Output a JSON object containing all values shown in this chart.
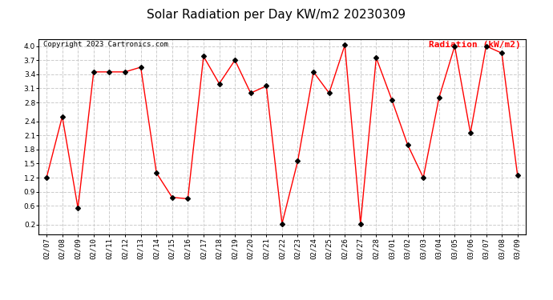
{
  "title": "Solar Radiation per Day KW/m2 20230309",
  "copyright_text": "Copyright 2023 Cartronics.com",
  "legend_label": "Radiation (kW/m2)",
  "dates": [
    "02/07",
    "02/08",
    "02/09",
    "02/10",
    "02/11",
    "02/12",
    "02/13",
    "02/14",
    "02/15",
    "02/16",
    "02/17",
    "02/18",
    "02/19",
    "02/20",
    "02/21",
    "02/22",
    "02/23",
    "02/24",
    "02/25",
    "02/26",
    "02/27",
    "02/28",
    "03/01",
    "03/02",
    "03/03",
    "03/04",
    "03/05",
    "03/06",
    "03/07",
    "03/08",
    "03/09"
  ],
  "values": [
    1.2,
    2.5,
    0.55,
    3.45,
    3.45,
    3.45,
    3.55,
    1.3,
    0.78,
    0.75,
    3.78,
    3.2,
    3.7,
    3.0,
    3.15,
    0.22,
    1.55,
    3.45,
    3.0,
    4.02,
    0.22,
    3.75,
    2.85,
    1.9,
    1.2,
    2.9,
    4.0,
    2.15,
    4.0,
    3.85,
    1.25
  ],
  "line_color": "red",
  "marker_color": "black",
  "grid_color": "#cccccc",
  "background_color": "white",
  "title_fontsize": 11,
  "copyright_fontsize": 6.5,
  "legend_fontsize": 8,
  "tick_fontsize": 6.5,
  "ylim": [
    0.0,
    4.15
  ],
  "yticks": [
    0.2,
    0.6,
    0.9,
    1.2,
    1.5,
    1.8,
    2.1,
    2.4,
    2.8,
    3.1,
    3.4,
    3.7,
    4.0
  ]
}
